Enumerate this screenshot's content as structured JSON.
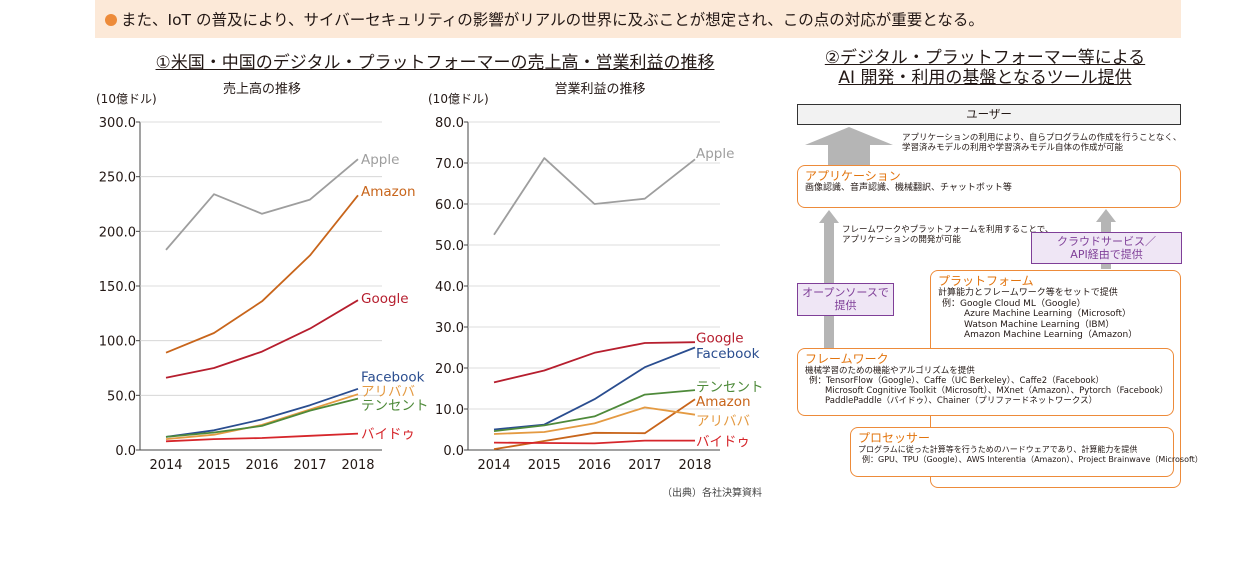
{
  "banner": "また、IoT の普及により、サイバーセキュリティの影響がリアルの世界に及ぶことが想定され、この点の対応が重要となる。",
  "section1_title": "①米国・中国のデジタル・プラットフォーマーの売上高・営業利益の推移",
  "section2_title_line1": "②デジタル・プラットフォーマー等による",
  "section2_title_line2": "AI 開発・利用の基盤となるツール提供",
  "source_note": "（出典）各社決算資料",
  "chart_data": [
    {
      "type": "line",
      "title": "売上高の推移",
      "unit_label": "(10億ドル)",
      "x": [
        2014,
        2015,
        2016,
        2017,
        2018
      ],
      "ylim": [
        0,
        300
      ],
      "yticks": [
        "0.0",
        "50.0",
        "100.0",
        "150.0",
        "200.0",
        "250.0",
        "300.0"
      ],
      "series": [
        {
          "name": "Apple",
          "values": [
            183,
            234,
            216,
            229,
            266
          ],
          "color": "#9e9e9e",
          "label_y": 266
        },
        {
          "name": "Amazon",
          "values": [
            89,
            107,
            136,
            178,
            233
          ],
          "color": "#c8651b",
          "label_y": 237
        },
        {
          "name": "Google",
          "values": [
            66,
            75,
            90,
            111,
            137
          ],
          "color": "#b61e2e",
          "label_y": 139
        },
        {
          "name": "Facebook",
          "values": [
            12,
            18,
            28,
            41,
            56
          ],
          "color": "#2a4d8f",
          "label_y": 67
        },
        {
          "name": "アリババ",
          "values": [
            10,
            14,
            23,
            37,
            51
          ],
          "color": "#e49a42",
          "label_y": 54
        },
        {
          "name": "テンセント",
          "values": [
            12,
            16,
            22,
            36,
            47
          ],
          "color": "#4e8a3a",
          "label_y": 41
        },
        {
          "name": "バイドゥ",
          "values": [
            8,
            10,
            11,
            13,
            15
          ],
          "color": "#d6262b",
          "label_y": 15
        }
      ]
    },
    {
      "type": "line",
      "title": "営業利益の推移",
      "unit_label": "(10億ドル)",
      "x": [
        2014,
        2015,
        2016,
        2017,
        2018
      ],
      "ylim": [
        0,
        80
      ],
      "yticks": [
        "0.0",
        "10.0",
        "20.0",
        "30.0",
        "40.0",
        "50.0",
        "60.0",
        "70.0",
        "80.0"
      ],
      "series": [
        {
          "name": "Apple",
          "values": [
            52.5,
            71.2,
            60.0,
            61.3,
            70.9
          ],
          "color": "#9e9e9e",
          "label_y": 72.5
        },
        {
          "name": "Google",
          "values": [
            16.5,
            19.4,
            23.7,
            26.1,
            26.3
          ],
          "color": "#b61e2e",
          "label_y": 27.5
        },
        {
          "name": "Facebook",
          "values": [
            5.0,
            6.2,
            12.4,
            20.2,
            25.0
          ],
          "color": "#2a4d8f",
          "label_y": 23.7
        },
        {
          "name": "テンセント",
          "values": [
            4.6,
            6.0,
            8.2,
            13.5,
            14.6
          ],
          "color": "#4e8a3a",
          "label_y": 15.5
        },
        {
          "name": "Amazon",
          "values": [
            0.2,
            2.2,
            4.2,
            4.1,
            12.4
          ],
          "color": "#c8651b",
          "label_y": 12.0
        },
        {
          "name": "アリババ",
          "values": [
            3.9,
            4.4,
            6.5,
            10.4,
            8.6
          ],
          "color": "#e49a42",
          "label_y": 7.2
        },
        {
          "name": "バイドゥ",
          "values": [
            1.8,
            1.7,
            1.6,
            2.3,
            2.3
          ],
          "color": "#d6262b",
          "label_y": 2.2
        }
      ]
    }
  ],
  "diagram": {
    "user": "ユーザー",
    "note_top_line1": "アプリケーションの利用により、自らプログラムの作成を行うことなく、",
    "note_top_line2": "学習済みモデルの利用や学習済みモデル自体の作成が可能",
    "application": {
      "head": "アプリケーション",
      "body": "画像認識、音声認識、機械翻訳、チャットボット等"
    },
    "note_mid_line1": "フレームワークやプラットフォームを利用することで、",
    "note_mid_line2": "アプリケーションの開発が可能",
    "cloud_line1": "クラウドサービス／",
    "cloud_line2": "API経由で提供",
    "open_line1": "オープンソースで",
    "open_line2": "提供",
    "platform": {
      "head": "プラットフォーム",
      "line1": "計算能力とフレームワーク等をセットで提供",
      "line2": "例：Google Cloud ML（Google）",
      "line3": "Azure Machine Learning（Microsoft）",
      "line4": "Watson Machine Learning（IBM）",
      "line5": "Amazon Machine Learning（Amazon）"
    },
    "framework": {
      "head": "フレームワーク",
      "line1": "機械学習のための機能やアルゴリズムを提供",
      "line2": "例：TensorFlow（Google）、Caffe（UC Berkeley）、Caffe2（Facebook）",
      "line3": "Microsoft Cognitive Toolkit（Microsoft）、MXnet（Amazon）、Pytorch（Facebook）",
      "line4": "PaddlePaddle（バイドゥ）、Chainer（プリファードネットワークス）"
    },
    "processor": {
      "head": "プロセッサー",
      "line1": "プログラムに従った計算等を行うためのハードウェアであり、計算能力を提供",
      "line2": "例：GPU、TPU（Google）、AWS Interentia（Amazon）、Project Brainwave（Microsoft）"
    }
  }
}
